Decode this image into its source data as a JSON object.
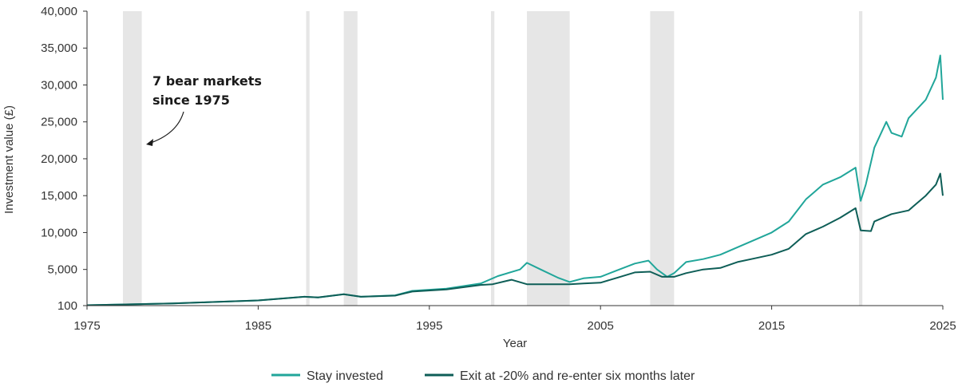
{
  "chart_data": {
    "type": "line",
    "title": "",
    "xlabel": "Year",
    "ylabel": "Investment value (£)",
    "xlim": [
      1975,
      2025
    ],
    "ylim": [
      100,
      40000
    ],
    "x_ticks": [
      "1975",
      "1985",
      "1995",
      "2005",
      "2015",
      "2025"
    ],
    "y_ticks": [
      "100",
      "5,000",
      "10,000",
      "15,000",
      "20,000",
      "25,000",
      "30,000",
      "35,000",
      "40,000"
    ],
    "grid": false,
    "legend_position": "bottom",
    "annotation": {
      "line1": "7 bear markets",
      "line2": "since 1975"
    },
    "bear_markets": [
      {
        "start": 1977.1,
        "end": 1978.2
      },
      {
        "start": 1987.8,
        "end": 1988.0
      },
      {
        "start": 1990.0,
        "end": 1990.8
      },
      {
        "start": 1998.6,
        "end": 1998.8
      },
      {
        "start": 2000.7,
        "end": 2003.2
      },
      {
        "start": 2007.9,
        "end": 2009.3
      },
      {
        "start": 2020.1,
        "end": 2020.3
      }
    ],
    "series": [
      {
        "name": "Stay invested",
        "color": "#21a69a",
        "x": [
          1975,
          1977,
          1980,
          1982,
          1985,
          1987.7,
          1988.5,
          1990,
          1991,
          1993,
          1994,
          1996,
          1998,
          1999,
          2000.3,
          2000.7,
          2001.5,
          2002.5,
          2003.2,
          2004,
          2005,
          2006,
          2007,
          2007.8,
          2008.3,
          2008.9,
          2009.3,
          2010,
          2011,
          2012,
          2013,
          2014,
          2015,
          2016,
          2017,
          2018,
          2019,
          2019.9,
          2020.2,
          2020.5,
          2021,
          2021.7,
          2022,
          2022.6,
          2023,
          2024,
          2024.6,
          2024.85,
          2025
        ],
        "values": [
          150,
          250,
          400,
          550,
          800,
          1300,
          1200,
          1650,
          1300,
          1500,
          2100,
          2400,
          3100,
          4100,
          5000,
          5900,
          5000,
          3900,
          3300,
          3800,
          4000,
          4900,
          5800,
          6200,
          5000,
          4000,
          4500,
          6000,
          6400,
          7000,
          8000,
          9000,
          10000,
          11500,
          14500,
          16500,
          17500,
          18800,
          14300,
          16500,
          21500,
          25000,
          23500,
          23000,
          25500,
          28000,
          31000,
          34000,
          28000
        ]
      },
      {
        "name": "Exit at -20% and re-enter six months later",
        "color": "#0e5e57",
        "x": [
          1975,
          1977,
          1980,
          1982,
          1985,
          1987.7,
          1988.5,
          1990,
          1991,
          1993,
          1994,
          1996,
          1998,
          1998.7,
          1999.8,
          2000.7,
          2003.2,
          2004,
          2005,
          2006,
          2007,
          2007.9,
          2008.6,
          2009.3,
          2010,
          2011,
          2012,
          2013,
          2014,
          2015,
          2016,
          2017,
          2018,
          2019,
          2019.9,
          2020.2,
          2020.8,
          2021,
          2022,
          2023,
          2024,
          2024.6,
          2024.85,
          2025
        ],
        "values": [
          150,
          250,
          400,
          550,
          800,
          1300,
          1200,
          1650,
          1300,
          1450,
          2000,
          2300,
          2900,
          3000,
          3600,
          3000,
          3000,
          3100,
          3200,
          3900,
          4600,
          4700,
          4000,
          4000,
          4500,
          5000,
          5200,
          6000,
          6500,
          7000,
          7800,
          9800,
          10800,
          12000,
          13300,
          10300,
          10200,
          11500,
          12500,
          13000,
          15000,
          16500,
          18000,
          15000
        ]
      }
    ]
  }
}
